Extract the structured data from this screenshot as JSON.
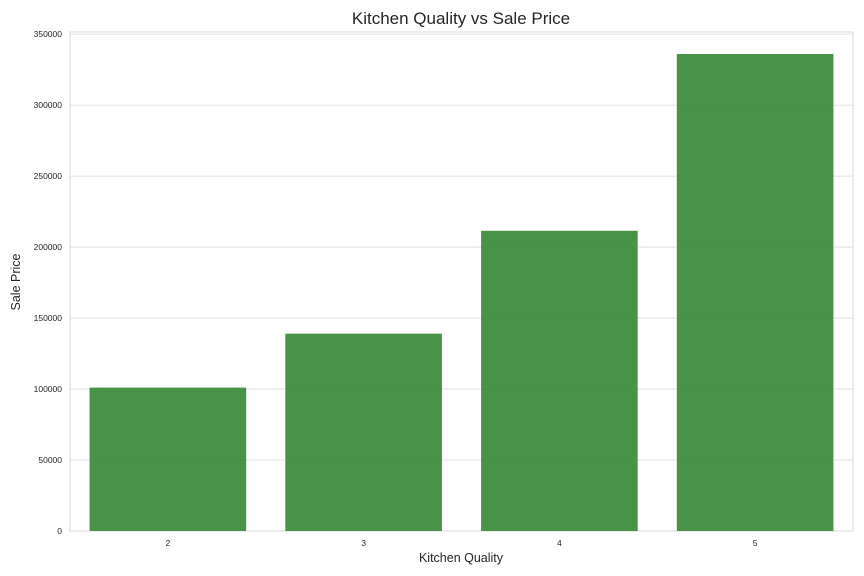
{
  "chart_data": {
    "type": "bar",
    "title": "Kitchen Quality vs Sale Price",
    "xlabel": "Kitchen Quality",
    "ylabel": "Sale Price",
    "categories": [
      "2",
      "3",
      "4",
      "5"
    ],
    "values": [
      101000,
      139000,
      211500,
      336000
    ],
    "ylim": [
      0,
      351500
    ],
    "yticks": [
      0,
      50000,
      100000,
      150000,
      200000,
      250000,
      300000,
      350000
    ],
    "ytick_labels": [
      "0",
      "50000",
      "100000",
      "150000",
      "200000",
      "250000",
      "300000",
      "350000"
    ],
    "bar_color": "#3a8a3a",
    "grid": true,
    "legend": "none"
  }
}
